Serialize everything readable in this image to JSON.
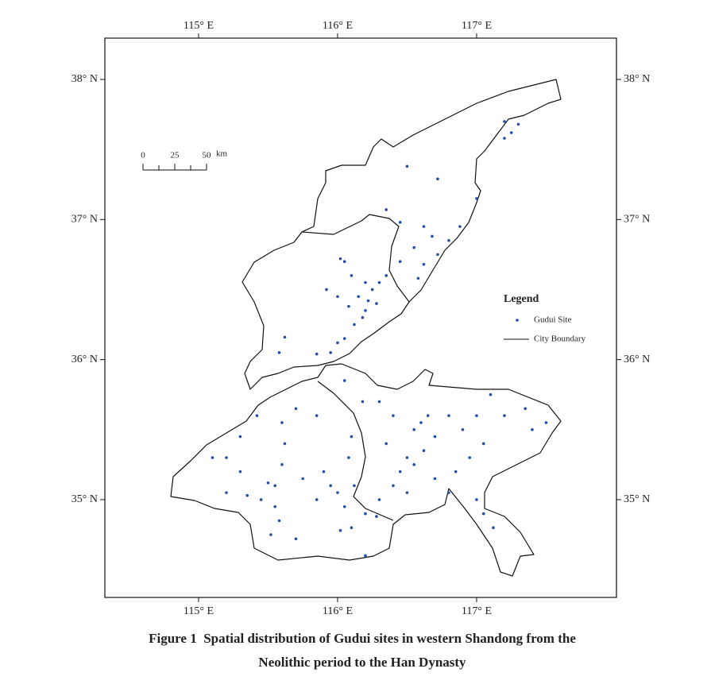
{
  "map": {
    "xlim": [
      114.326,
      118.006
    ],
    "ylim": [
      34.302,
      38.295
    ],
    "xticks": [
      {
        "value": 115,
        "label": "115° E"
      },
      {
        "value": 116,
        "label": "116° E"
      },
      {
        "value": 117,
        "label": "117° E"
      }
    ],
    "yticks": [
      {
        "value": 35,
        "label": "35° N"
      },
      {
        "value": 36,
        "label": "36° N"
      },
      {
        "value": 37,
        "label": "37° N"
      },
      {
        "value": 38,
        "label": "38° N"
      }
    ],
    "scale_ticks": [
      0,
      25,
      50
    ],
    "scale_unit": "km",
    "legend": {
      "title": "Legend",
      "point": "Gudui Site",
      "line": "City Boundary"
    },
    "point_color": "#1f4fa8",
    "sites": [
      [
        116.2,
        36.55
      ],
      [
        116.25,
        36.5
      ],
      [
        116.3,
        36.55
      ],
      [
        116.15,
        36.45
      ],
      [
        116.22,
        36.42
      ],
      [
        116.28,
        36.4
      ],
      [
        116.1,
        36.6
      ],
      [
        116.05,
        36.7
      ],
      [
        116.02,
        36.72
      ],
      [
        116.2,
        36.35
      ],
      [
        116.18,
        36.3
      ],
      [
        116.12,
        36.25
      ],
      [
        116.05,
        36.15
      ],
      [
        116.0,
        36.12
      ],
      [
        115.95,
        36.05
      ],
      [
        115.85,
        36.04
      ],
      [
        115.62,
        36.16
      ],
      [
        115.58,
        36.05
      ],
      [
        115.92,
        36.5
      ],
      [
        116.35,
        36.6
      ],
      [
        116.0,
        36.45
      ],
      [
        116.08,
        36.38
      ],
      [
        116.5,
        37.38
      ],
      [
        116.72,
        37.29
      ],
      [
        116.35,
        37.07
      ],
      [
        116.45,
        36.98
      ],
      [
        116.62,
        36.95
      ],
      [
        116.68,
        36.88
      ],
      [
        116.72,
        36.75
      ],
      [
        116.55,
        36.8
      ],
      [
        116.45,
        36.7
      ],
      [
        116.62,
        36.68
      ],
      [
        116.8,
        36.85
      ],
      [
        116.88,
        36.95
      ],
      [
        117.0,
        37.15
      ],
      [
        117.2,
        37.58
      ],
      [
        117.25,
        37.62
      ],
      [
        117.2,
        37.7
      ],
      [
        117.3,
        37.68
      ],
      [
        116.58,
        36.58
      ],
      [
        115.1,
        35.3
      ],
      [
        115.2,
        35.3
      ],
      [
        115.3,
        35.2
      ],
      [
        115.2,
        35.05
      ],
      [
        115.35,
        35.03
      ],
      [
        115.5,
        35.12
      ],
      [
        115.55,
        35.1
      ],
      [
        115.45,
        35.0
      ],
      [
        115.55,
        34.95
      ],
      [
        115.58,
        34.85
      ],
      [
        115.52,
        34.75
      ],
      [
        115.7,
        34.72
      ],
      [
        115.6,
        35.25
      ],
      [
        115.62,
        35.4
      ],
      [
        115.75,
        35.15
      ],
      [
        115.85,
        35.0
      ],
      [
        115.9,
        35.2
      ],
      [
        115.95,
        35.1
      ],
      [
        116.0,
        35.05
      ],
      [
        116.05,
        34.95
      ],
      [
        116.1,
        34.8
      ],
      [
        116.02,
        34.78
      ],
      [
        116.12,
        35.1
      ],
      [
        116.08,
        35.3
      ],
      [
        116.1,
        35.45
      ],
      [
        115.85,
        35.6
      ],
      [
        115.7,
        35.65
      ],
      [
        115.6,
        35.55
      ],
      [
        115.42,
        35.6
      ],
      [
        115.3,
        35.45
      ],
      [
        116.2,
        34.9
      ],
      [
        116.28,
        34.88
      ],
      [
        116.3,
        35.0
      ],
      [
        116.4,
        35.1
      ],
      [
        116.45,
        35.2
      ],
      [
        116.5,
        35.3
      ],
      [
        116.55,
        35.5
      ],
      [
        116.6,
        35.55
      ],
      [
        116.65,
        35.6
      ],
      [
        116.7,
        35.45
      ],
      [
        116.62,
        35.35
      ],
      [
        116.55,
        35.25
      ],
      [
        116.5,
        35.05
      ],
      [
        116.35,
        35.4
      ],
      [
        116.4,
        35.6
      ],
      [
        116.3,
        35.7
      ],
      [
        116.8,
        35.6
      ],
      [
        116.9,
        35.5
      ],
      [
        117.0,
        35.6
      ],
      [
        117.05,
        35.4
      ],
      [
        117.1,
        35.75
      ],
      [
        117.2,
        35.6
      ],
      [
        117.4,
        35.5
      ],
      [
        117.35,
        35.65
      ],
      [
        117.5,
        35.55
      ],
      [
        116.7,
        35.15
      ],
      [
        116.85,
        35.2
      ],
      [
        116.95,
        35.3
      ],
      [
        117.0,
        35.0
      ],
      [
        117.05,
        34.9
      ],
      [
        117.12,
        34.8
      ],
      [
        116.8,
        35.05
      ],
      [
        116.2,
        34.6
      ],
      [
        116.05,
        35.85
      ],
      [
        116.18,
        35.7
      ]
    ],
    "caption": [
      "Figure 1  Spatial distribution of Gudui sites in western Shandong from the",
      "Neolithic period to the Han Dynasty"
    ]
  }
}
